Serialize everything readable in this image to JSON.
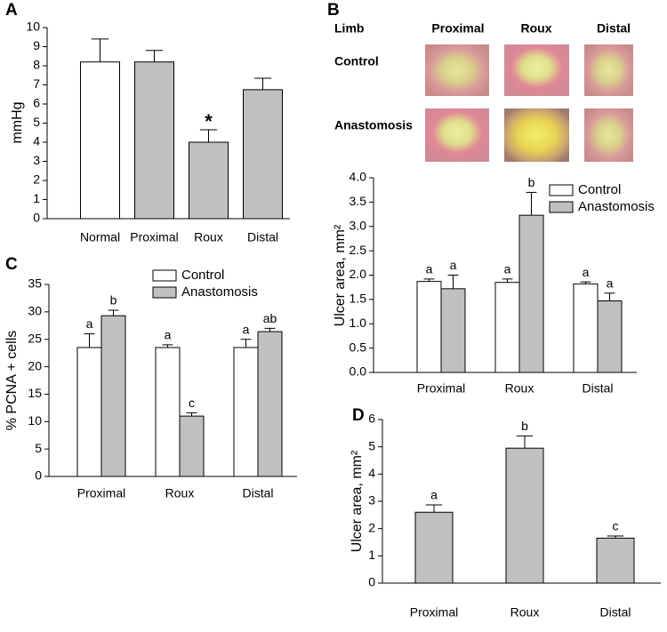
{
  "chart_data": [
    {
      "type": "bar",
      "panel_label": "A",
      "ylabel": "mmHg",
      "categories": [
        "Normal",
        "Proximal",
        "Roux",
        "Distal"
      ],
      "values": [
        8.2,
        8.2,
        4.0,
        6.75
      ],
      "errors": [
        1.2,
        0.6,
        0.65,
        0.6
      ],
      "annotations": [
        null,
        null,
        "*",
        null
      ],
      "colors": [
        "#ffffff",
        "#c0c0c0",
        "#c0c0c0",
        "#c0c0c0"
      ],
      "ylim": [
        0,
        10
      ],
      "yticks": [
        0,
        1,
        2,
        3,
        4,
        5,
        6,
        7,
        8,
        9,
        10
      ]
    },
    {
      "type": "bar",
      "panel_label": "B",
      "ylabel": "Ulcer area, mm²",
      "categories": [
        "Proximal",
        "Roux",
        "Distal"
      ],
      "series": [
        {
          "name": "Control",
          "color": "#ffffff",
          "values": [
            1.87,
            1.85,
            1.82
          ],
          "errors": [
            0.05,
            0.07,
            0.04
          ],
          "annotations": [
            "a",
            "a",
            "a"
          ]
        },
        {
          "name": "Anastomosis",
          "color": "#c0c0c0",
          "values": [
            1.72,
            3.23,
            1.47
          ],
          "errors": [
            0.28,
            0.47,
            0.16
          ],
          "annotations": [
            "a",
            "b",
            "a"
          ]
        }
      ],
      "legend": "upper right",
      "ylim": [
        0,
        4
      ],
      "yticks": [
        {
          "value": 0,
          "label": "0.0"
        },
        0.5,
        {
          "value": 1,
          "label": "1.0"
        },
        1.5,
        {
          "value": 2,
          "label": "2.0"
        },
        2.5,
        {
          "value": 3,
          "label": "3.0"
        },
        3.5,
        {
          "value": 4,
          "label": "4.0"
        }
      ]
    },
    {
      "type": "bar",
      "panel_label": "C",
      "ylabel": "% PCNA + cells",
      "categories": [
        "Proximal",
        "Roux",
        "Distal"
      ],
      "series": [
        {
          "name": "Control",
          "color": "#ffffff",
          "values": [
            23.5,
            23.5,
            23.5
          ],
          "errors": [
            2.5,
            0.5,
            1.5
          ],
          "annotations": [
            "a",
            "a",
            "a"
          ]
        },
        {
          "name": "Anastomosis",
          "color": "#c0c0c0",
          "values": [
            29.3,
            11.0,
            26.4
          ],
          "errors": [
            1.0,
            0.6,
            0.6
          ],
          "annotations": [
            "b",
            "c",
            "ab"
          ]
        }
      ],
      "legend": "upper center",
      "ylim": [
        0,
        35
      ],
      "yticks": [
        0,
        5,
        10,
        15,
        20,
        25,
        30,
        35
      ]
    },
    {
      "type": "bar",
      "panel_label": "D",
      "ylabel": "Ulcer area, mm²",
      "categories": [
        "Proximal",
        "Roux",
        "Distal"
      ],
      "values": [
        2.6,
        4.95,
        1.65
      ],
      "errors": [
        0.27,
        0.45,
        0.08
      ],
      "annotations": [
        "a",
        "b",
        "c"
      ],
      "colors": [
        "#c0c0c0",
        "#c0c0c0",
        "#c0c0c0"
      ],
      "ylim": [
        0,
        6
      ],
      "yticks": [
        0,
        1,
        2,
        3,
        4,
        5,
        6
      ]
    }
  ],
  "photo_panel": {
    "header": [
      "Limb",
      "Proximal",
      "Roux",
      "Distal"
    ],
    "rows": [
      "Control",
      "Anastomosis"
    ]
  }
}
